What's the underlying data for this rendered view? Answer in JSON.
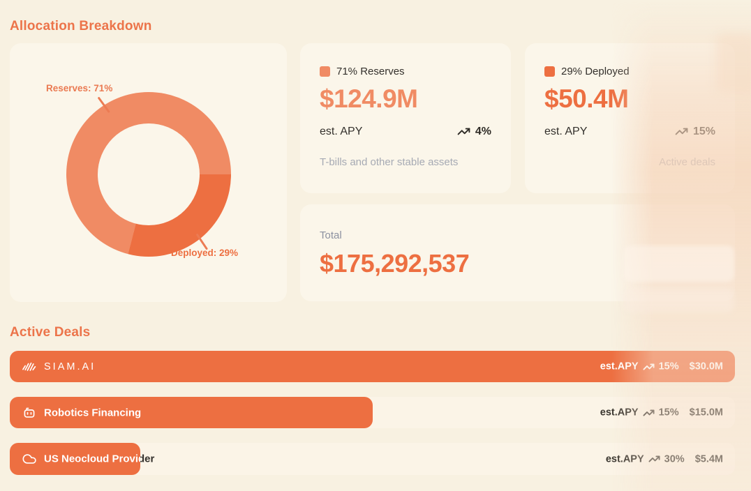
{
  "colors": {
    "page_bg": "#F8F1E1",
    "card_bg": "#FBF6EA",
    "primary_orange": "#ED6F41",
    "reserves_salmon": "#F08B64",
    "heading_orange": "#EC744A",
    "dark_text": "#33302C",
    "muted_gray": "#A6AAB4"
  },
  "allocation": {
    "heading": "Allocation Breakdown",
    "donut": {
      "reserves_label": "Reserves: 71%",
      "deployed_label": "Deployed: 29%"
    },
    "reserves_card": {
      "legend": "71% Reserves",
      "amount": "$124.9M",
      "apy_label": "est. APY",
      "apy_value": "4%",
      "description": "T-bills and other stable assets",
      "swatch_color": "#F08B64"
    },
    "deployed_card": {
      "legend": "29% Deployed",
      "amount": "$50.4M",
      "apy_label": "est. APY",
      "apy_value": "15%",
      "description": "Active deals",
      "swatch_color": "#ED6F41"
    },
    "total_card": {
      "label": "Total",
      "amount": "$175,292,537"
    }
  },
  "deals": {
    "heading": "Active Deals",
    "rows": [
      {
        "name": "SIAM.AI",
        "icon": "siam-wave-icon",
        "apy_label": "est.APY",
        "apy": "15%",
        "amount": "$30.0M",
        "bar_pct": 100
      },
      {
        "name": "Robotics Financing",
        "icon": "robot-icon",
        "apy_label": "est.APY",
        "apy": "15%",
        "amount": "$15.0M",
        "bar_pct": 50
      },
      {
        "name": "US Neocloud Provider",
        "icon": "cloud-icon",
        "apy_label": "est.APY",
        "apy": "30%",
        "amount": "$5.4M",
        "bar_pct": 18
      }
    ]
  },
  "chart_data": [
    {
      "type": "pie",
      "donut": true,
      "title": "Allocation Breakdown",
      "labels": [
        "Reserves",
        "Deployed"
      ],
      "values": [
        71,
        29
      ],
      "colors": [
        "#F08B64",
        "#ED6F41"
      ],
      "annotations": [
        "Reserves: 71%",
        "Deployed: 29%"
      ],
      "legend_position": "callout-labels"
    },
    {
      "type": "bar",
      "title": "Active Deals",
      "categories": [
        "SIAM.AI",
        "Robotics Financing",
        "US Neocloud Provider"
      ],
      "values": [
        30.0,
        15.0,
        5.4
      ],
      "unit": "M USD",
      "apy_pct": [
        15,
        15,
        30
      ],
      "xlim": [
        0,
        30
      ],
      "orientation": "horizontal"
    }
  ]
}
